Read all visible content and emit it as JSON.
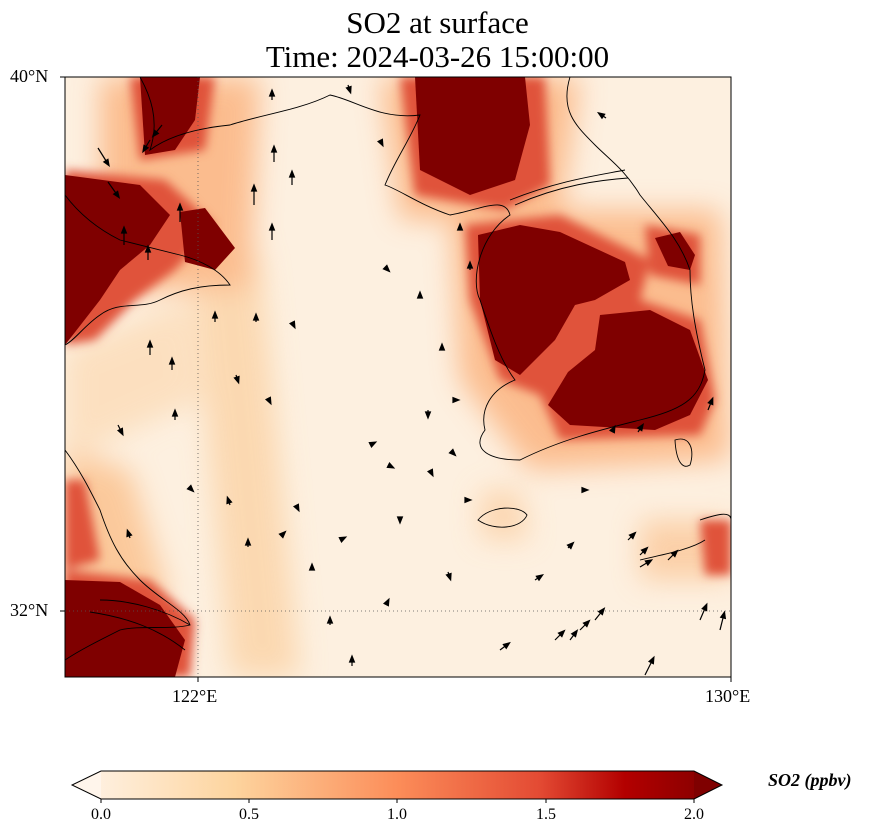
{
  "title": {
    "line1": "SO2 at surface",
    "line2": "Time: 2024-03-26 15:00:00"
  },
  "map": {
    "lat_labels": [
      "40°N",
      "32°N"
    ],
    "lon_labels": [
      "122°E",
      "130°E"
    ],
    "extent": {
      "lon": [
        120,
        130
      ],
      "lat": [
        31,
        40
      ]
    }
  },
  "colorbar": {
    "label": "SO2 (ppbv)",
    "ticks": [
      "0.0",
      "0.5",
      "1.0",
      "1.5",
      "2.0"
    ],
    "range": [
      0,
      2
    ],
    "extend": "both",
    "colors": [
      "#fff5eb",
      "#fdd49e",
      "#fc8d59",
      "#d7301f",
      "#b30000",
      "#7f0000"
    ]
  }
}
